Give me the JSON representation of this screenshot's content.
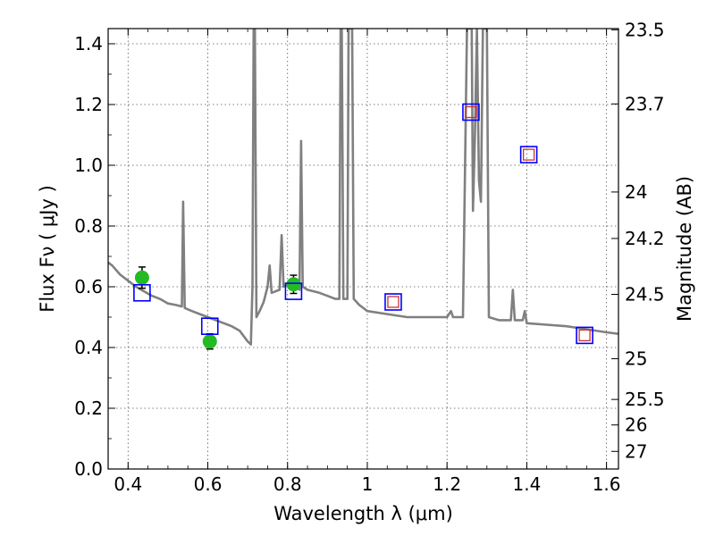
{
  "chart_data": {
    "type": "scatter",
    "title": "",
    "xlabel": "Wavelength  λ (μm)",
    "ylabel": "Flux  Fν  ( μJy )",
    "y2label": "Magnitude (AB)",
    "xlim": [
      0.35,
      1.63
    ],
    "ylim": [
      0.0,
      1.45
    ],
    "grid": true,
    "x_ticks": [
      0.4,
      0.6,
      0.8,
      1.0,
      1.2,
      1.4,
      1.6
    ],
    "x_tick_labels": [
      "0.4",
      "0.6",
      "0.8",
      "1",
      "1.2",
      "1.4",
      "1.6"
    ],
    "y_ticks": [
      0.0,
      0.2,
      0.4,
      0.6,
      0.8,
      1.0,
      1.2,
      1.4
    ],
    "y_tick_labels": [
      "0.0",
      "0.2",
      "0.4",
      "0.6",
      "0.8",
      "1.0",
      "1.2",
      "1.4"
    ],
    "y2_ticks": [
      {
        "label": "23.5",
        "flux": 1.446
      },
      {
        "label": "23.7",
        "flux": 1.202
      },
      {
        "label": "24",
        "flux": 0.912
      },
      {
        "label": "24.2",
        "flux": 0.759
      },
      {
        "label": "24.5",
        "flux": 0.575
      },
      {
        "label": "25",
        "flux": 0.363
      },
      {
        "label": "25.5",
        "flux": 0.229
      },
      {
        "label": "26",
        "flux": 0.145
      },
      {
        "label": "27",
        "flux": 0.058
      }
    ],
    "colors": {
      "spectrum": "#808080",
      "observed": "#22bb22",
      "model_box": "#0000ff",
      "model_inner": "#cc3333",
      "grid": "#555555",
      "errorbar": "#000000"
    },
    "series": [
      {
        "kind": "line",
        "points": [
          [
            0.35,
            0.68
          ],
          [
            0.36,
            0.67
          ],
          [
            0.38,
            0.64
          ],
          [
            0.4,
            0.62
          ],
          [
            0.42,
            0.6
          ],
          [
            0.44,
            0.585
          ],
          [
            0.46,
            0.57
          ],
          [
            0.48,
            0.56
          ],
          [
            0.5,
            0.545
          ],
          [
            0.52,
            0.54
          ],
          [
            0.535,
            0.535
          ],
          [
            0.538,
            0.88
          ],
          [
            0.542,
            0.53
          ],
          [
            0.56,
            0.52
          ],
          [
            0.58,
            0.51
          ],
          [
            0.6,
            0.5
          ],
          [
            0.62,
            0.49
          ],
          [
            0.64,
            0.48
          ],
          [
            0.66,
            0.47
          ],
          [
            0.68,
            0.455
          ],
          [
            0.7,
            0.42
          ],
          [
            0.708,
            0.41
          ],
          [
            0.712,
            0.6
          ],
          [
            0.715,
            1.45
          ],
          [
            0.718,
            1.45
          ],
          [
            0.722,
            0.5
          ],
          [
            0.73,
            0.52
          ],
          [
            0.74,
            0.55
          ],
          [
            0.75,
            0.6
          ],
          [
            0.755,
            0.67
          ],
          [
            0.76,
            0.58
          ],
          [
            0.78,
            0.59
          ],
          [
            0.785,
            0.77
          ],
          [
            0.79,
            0.6
          ],
          [
            0.8,
            0.605
          ],
          [
            0.81,
            0.61
          ],
          [
            0.82,
            0.6
          ],
          [
            0.83,
            0.59
          ],
          [
            0.834,
            1.08
          ],
          [
            0.838,
            0.6
          ],
          [
            0.85,
            0.59
          ],
          [
            0.88,
            0.58
          ],
          [
            0.9,
            0.57
          ],
          [
            0.92,
            0.56
          ],
          [
            0.93,
            0.56
          ],
          [
            0.933,
            1.45
          ],
          [
            0.936,
            1.45
          ],
          [
            0.94,
            0.56
          ],
          [
            0.95,
            0.56
          ],
          [
            0.953,
            1.45
          ],
          [
            0.962,
            1.45
          ],
          [
            0.966,
            0.56
          ],
          [
            0.98,
            0.54
          ],
          [
            1.0,
            0.52
          ],
          [
            1.05,
            0.51
          ],
          [
            1.1,
            0.5
          ],
          [
            1.15,
            0.5
          ],
          [
            1.2,
            0.5
          ],
          [
            1.21,
            0.52
          ],
          [
            1.215,
            0.5
          ],
          [
            1.24,
            0.5
          ],
          [
            1.25,
            1.45
          ],
          [
            1.262,
            1.45
          ],
          [
            1.265,
            0.85
          ],
          [
            1.27,
            1.1
          ],
          [
            1.275,
            1.45
          ],
          [
            1.28,
            0.95
          ],
          [
            1.285,
            0.88
          ],
          [
            1.29,
            1.45
          ],
          [
            1.3,
            1.45
          ],
          [
            1.305,
            0.5
          ],
          [
            1.33,
            0.49
          ],
          [
            1.36,
            0.49
          ],
          [
            1.365,
            0.59
          ],
          [
            1.37,
            0.49
          ],
          [
            1.39,
            0.49
          ],
          [
            1.395,
            0.52
          ],
          [
            1.4,
            0.48
          ],
          [
            1.45,
            0.475
          ],
          [
            1.5,
            0.47
          ],
          [
            1.55,
            0.46
          ],
          [
            1.6,
            0.45
          ],
          [
            1.63,
            0.445
          ]
        ]
      },
      {
        "kind": "points_errorbar",
        "points": [
          {
            "x": 0.435,
            "y": 0.63,
            "yerr": 0.035
          },
          {
            "x": 0.605,
            "y": 0.42,
            "yerr": 0.025
          },
          {
            "x": 0.815,
            "y": 0.608,
            "yerr": 0.03
          }
        ]
      },
      {
        "kind": "squares",
        "points": [
          {
            "x": 0.435,
            "y": 0.58
          },
          {
            "x": 0.605,
            "y": 0.47
          },
          {
            "x": 0.815,
            "y": 0.585
          }
        ]
      },
      {
        "kind": "squares_with_inner",
        "points": [
          {
            "x": 1.065,
            "y": 0.55
          },
          {
            "x": 1.26,
            "y": 1.175
          },
          {
            "x": 1.405,
            "y": 1.035
          },
          {
            "x": 1.545,
            "y": 0.44
          }
        ]
      }
    ]
  }
}
